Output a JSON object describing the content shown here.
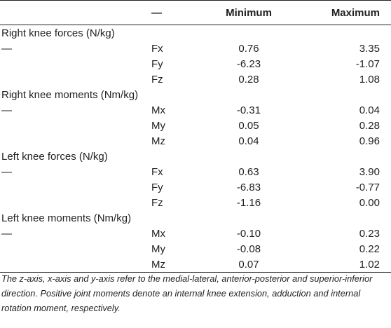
{
  "header": {
    "col_label": "",
    "col_component": "—",
    "col_min": "Minimum",
    "col_max": "Maximum"
  },
  "groups": [
    {
      "title": "Right knee forces (N/kg)",
      "rows": [
        {
          "dash": "—",
          "comp": "Fx",
          "min": "0.76",
          "max": "3.35"
        },
        {
          "dash": "",
          "comp": "Fy",
          "min": "-6.23",
          "max": "-1.07"
        },
        {
          "dash": "",
          "comp": "Fz",
          "min": "0.28",
          "max": "1.08"
        }
      ]
    },
    {
      "title": "Right knee moments (Nm/kg)",
      "rows": [
        {
          "dash": "—",
          "comp": "Mx",
          "min": "-0.31",
          "max": "0.04"
        },
        {
          "dash": "",
          "comp": "My",
          "min": "0.05",
          "max": "0.28"
        },
        {
          "dash": "",
          "comp": "Mz",
          "min": "0.04",
          "max": "0.96"
        }
      ]
    },
    {
      "title": "Left knee forces (N/kg)",
      "rows": [
        {
          "dash": "—",
          "comp": "Fx",
          "min": "0.63",
          "max": "3.90"
        },
        {
          "dash": "",
          "comp": "Fy",
          "min": "-6.83",
          "max": "-0.77"
        },
        {
          "dash": "",
          "comp": "Fz",
          "min": "-1.16",
          "max": "0.00"
        }
      ]
    },
    {
      "title": "Left knee moments (Nm/kg)",
      "rows": [
        {
          "dash": "—",
          "comp": "Mx",
          "min": "-0.10",
          "max": "0.23"
        },
        {
          "dash": "",
          "comp": "My",
          "min": "-0.08",
          "max": "0.22"
        },
        {
          "dash": "",
          "comp": "Mz",
          "min": "0.07",
          "max": "1.02"
        }
      ]
    }
  ],
  "footnote": "The z-axis, x-axis and y-axis refer to the medial-lateral, anterior-posterior and superior-inferior direction. Positive joint moments denote an internal knee extension, adduction and internal rotation moment, respectively."
}
